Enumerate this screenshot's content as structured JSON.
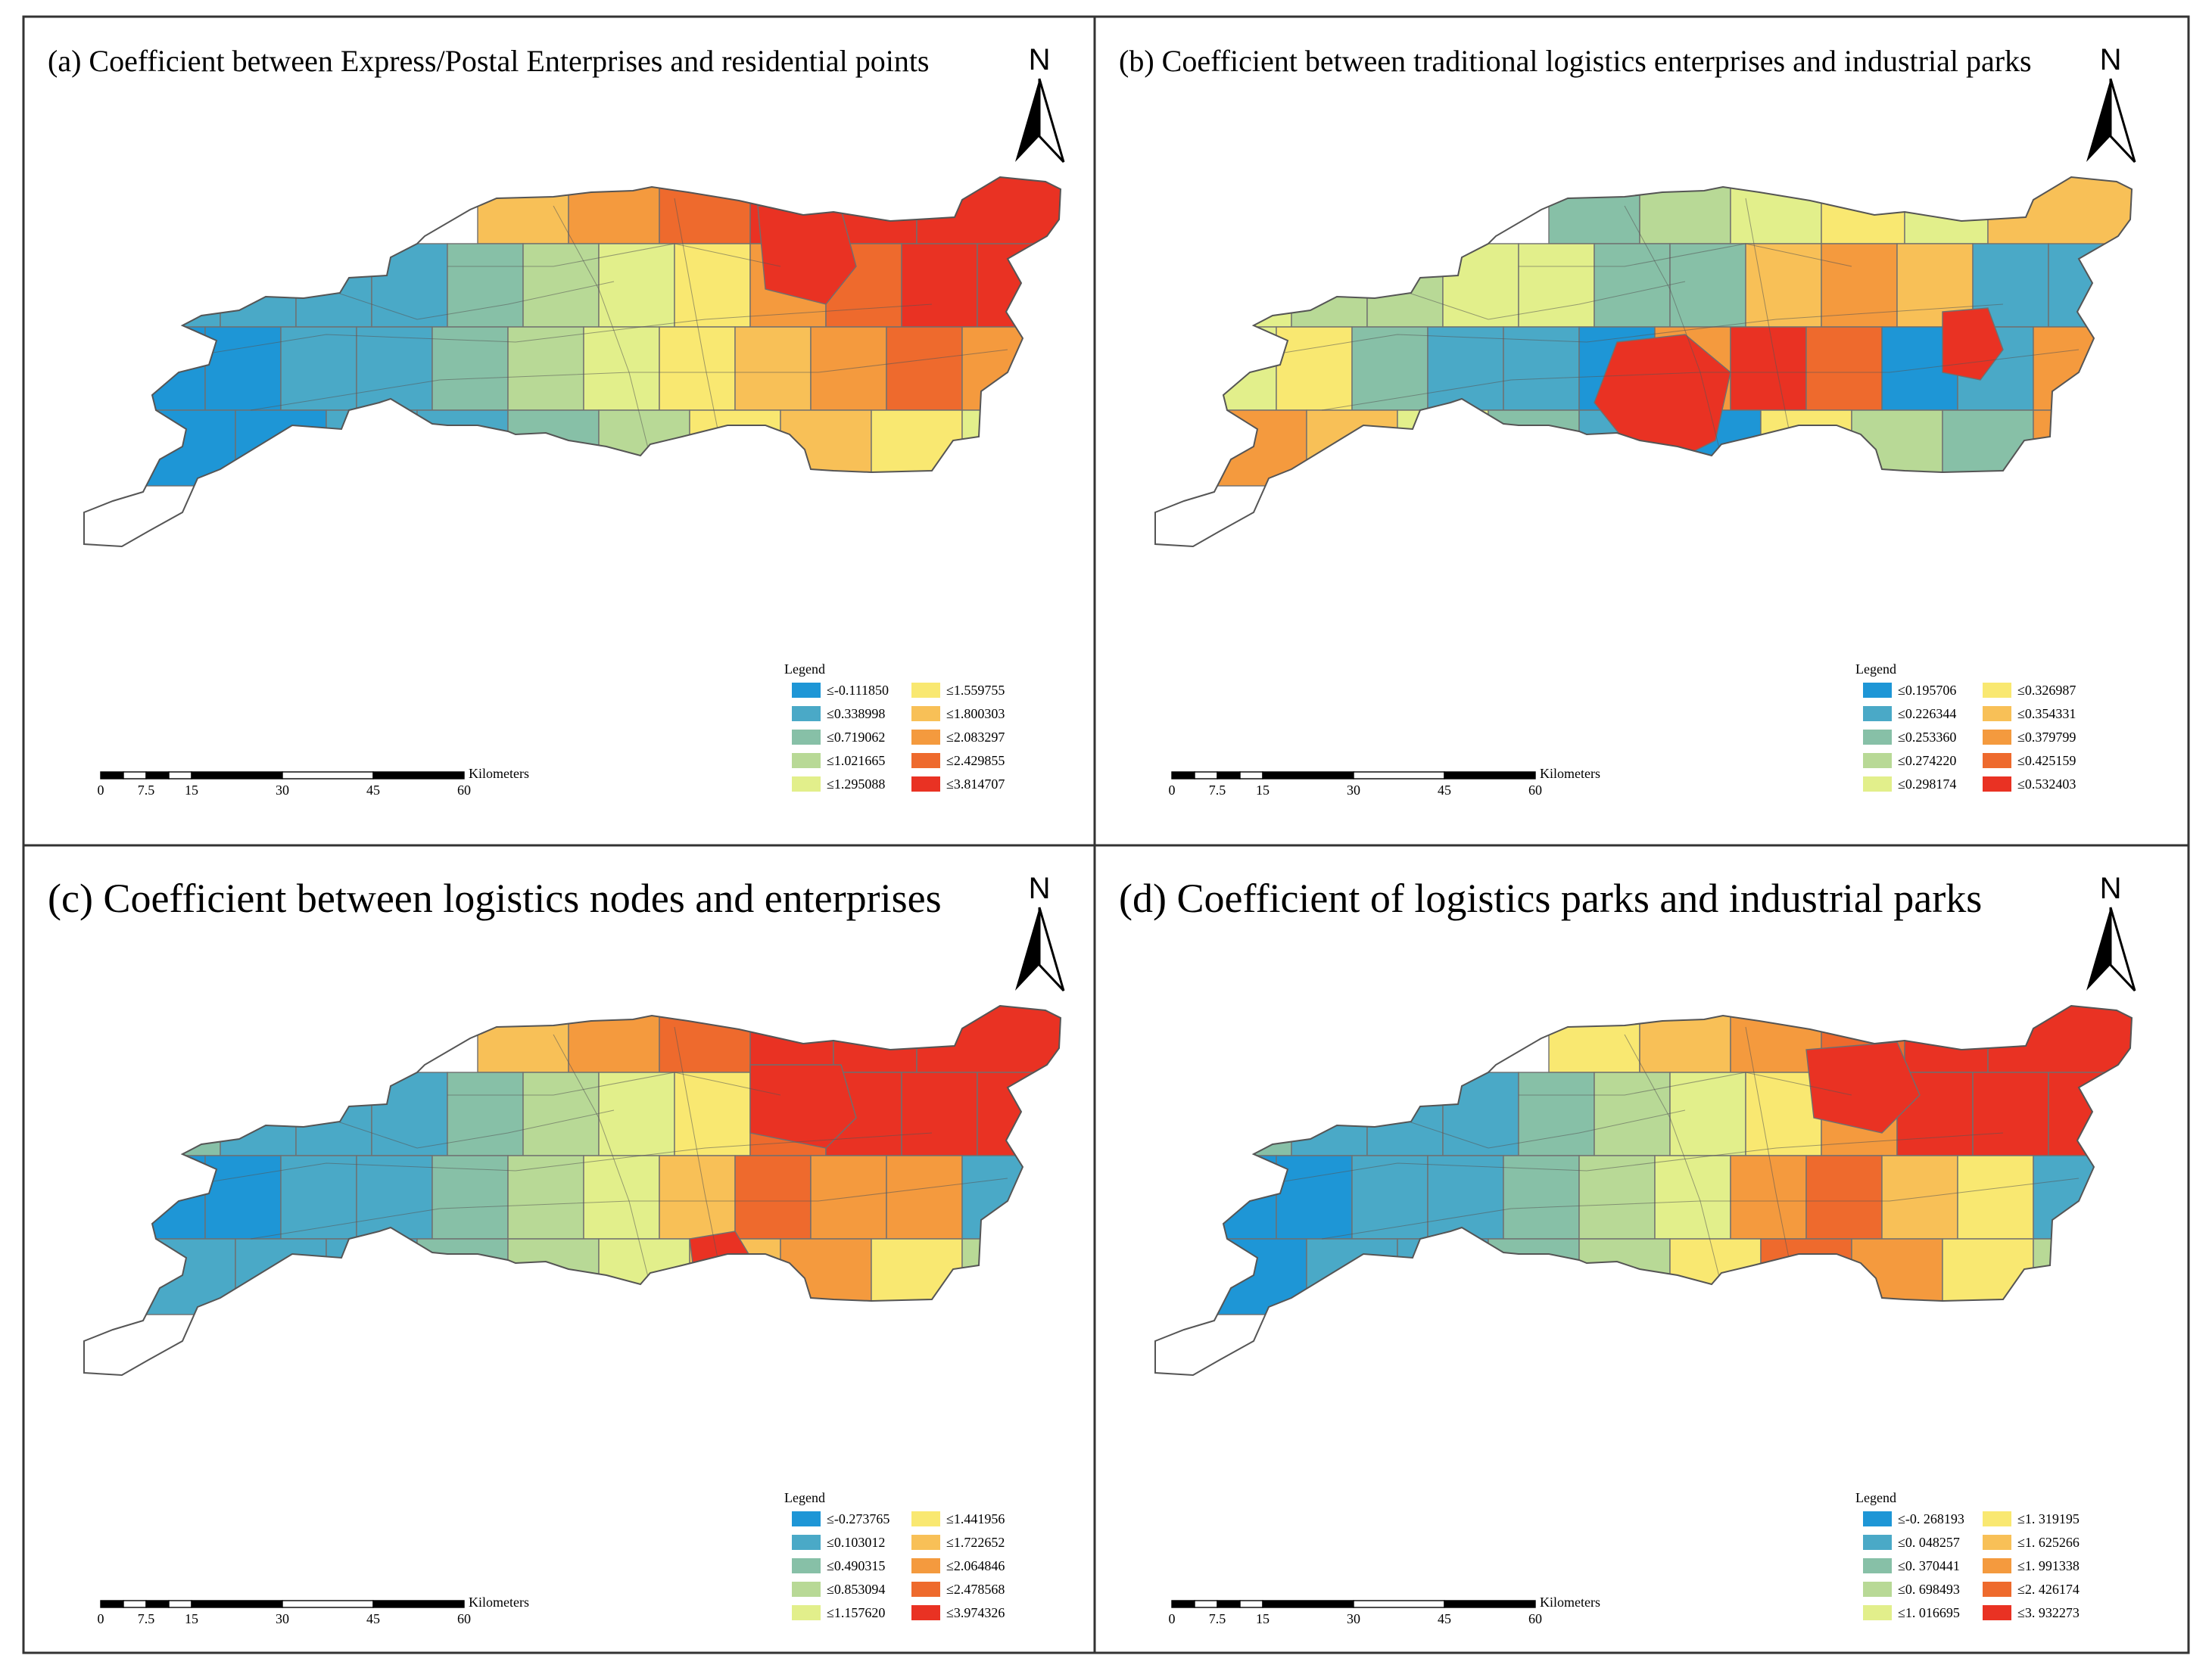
{
  "panels": [
    {
      "id": "a",
      "title": "(a) Coefficient between Express/Postal Enterprises and residential points",
      "title_size": "small",
      "pattern": "a",
      "legend": {
        "title": "Legend",
        "labels": [
          "≤-0.111850",
          "≤0.338998",
          "≤0.719062",
          "≤1.021665",
          "≤1.295088",
          "≤1.559755",
          "≤1.800303",
          "≤2.083297",
          "≤2.429855",
          "≤3.814707"
        ]
      }
    },
    {
      "id": "b",
      "title": "(b) Coefficient between traditional logistics enterprises and industrial parks",
      "title_size": "small",
      "pattern": "b",
      "legend": {
        "title": "Legend",
        "labels": [
          "≤0.195706",
          "≤0.226344",
          "≤0.253360",
          "≤0.274220",
          "≤0.298174",
          "≤0.326987",
          "≤0.354331",
          "≤0.379799",
          "≤0.425159",
          "≤0.532403"
        ]
      }
    },
    {
      "id": "c",
      "title": "(c) Coefficient between logistics nodes and enterprises",
      "title_size": "large",
      "pattern": "c",
      "legend": {
        "title": "Legend",
        "labels": [
          "≤-0.273765",
          "≤0.103012",
          "≤0.490315",
          "≤0.853094",
          "≤1.157620",
          "≤1.441956",
          "≤1.722652",
          "≤2.064846",
          "≤2.478568",
          "≤3.974326"
        ]
      }
    },
    {
      "id": "d",
      "title": "(d) Coefficient of logistics parks and industrial parks",
      "title_size": "large",
      "pattern": "d",
      "legend": {
        "title": "Legend",
        "labels": [
          "≤-0. 268193",
          "≤0. 048257",
          "≤0. 370441",
          "≤0. 698493",
          "≤1. 016695",
          "≤1. 319195",
          "≤1. 625266",
          "≤1. 991338",
          "≤2. 426174",
          "≤3. 932273"
        ]
      }
    }
  ],
  "north_arrow": {
    "letter": "N"
  },
  "scale_bar": {
    "ticks": [
      "0",
      "7.5",
      "15",
      "30",
      "45",
      "60"
    ],
    "unit": "Kilometers"
  },
  "colors": {
    "ramp": [
      "#1e96d6",
      "#4aa9c7",
      "#87c0a7",
      "#b8d996",
      "#e2ef8b",
      "#f9e871",
      "#f8c057",
      "#f49a3e",
      "#ee6a2d",
      "#e93223"
    ],
    "frame": "#333333"
  }
}
